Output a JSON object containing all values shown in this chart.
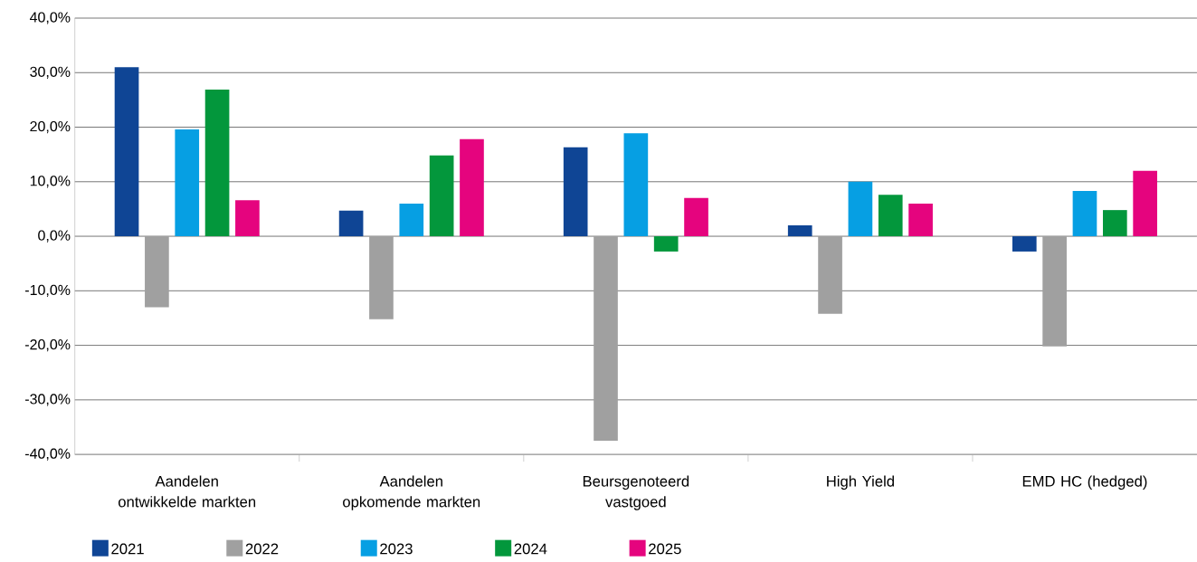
{
  "chart_data": {
    "type": "bar",
    "categories": [
      "Aandelen ontwikkelde markten",
      "Aandelen opkomende markten",
      "Beursgenoteerd vastgoed",
      "High Yield",
      "EMD HC (hedged)"
    ],
    "series": [
      {
        "name": "2021",
        "color": "#0f4595",
        "values": [
          31.0,
          4.7,
          16.3,
          2.0,
          -2.8
        ]
      },
      {
        "name": "2022",
        "color": "#a0a0a0",
        "values": [
          -13.0,
          -15.2,
          -37.5,
          -14.2,
          -20.2
        ]
      },
      {
        "name": "2023",
        "color": "#069fe3",
        "values": [
          19.6,
          6.0,
          18.9,
          10.0,
          8.3
        ]
      },
      {
        "name": "2024",
        "color": "#03973c",
        "values": [
          26.9,
          14.8,
          -2.8,
          7.6,
          4.8
        ]
      },
      {
        "name": "2025",
        "color": "#e5047e",
        "values": [
          6.6,
          17.8,
          7.0,
          6.0,
          12.0
        ]
      }
    ],
    "ylim": [
      -40,
      40
    ],
    "yticks": [
      {
        "value": -40,
        "label": "-40,0%"
      },
      {
        "value": -30,
        "label": "-30,0%"
      },
      {
        "value": -20,
        "label": "-20,0%"
      },
      {
        "value": -10,
        "label": "-10,0%"
      },
      {
        "value": 0,
        "label": "0,0%"
      },
      {
        "value": 10,
        "label": "10,0%"
      },
      {
        "value": 20,
        "label": "20,0%"
      },
      {
        "value": 30,
        "label": "30,0%"
      },
      {
        "value": 40,
        "label": "40,0%"
      }
    ],
    "grid": "y",
    "legend": "bottom left"
  }
}
